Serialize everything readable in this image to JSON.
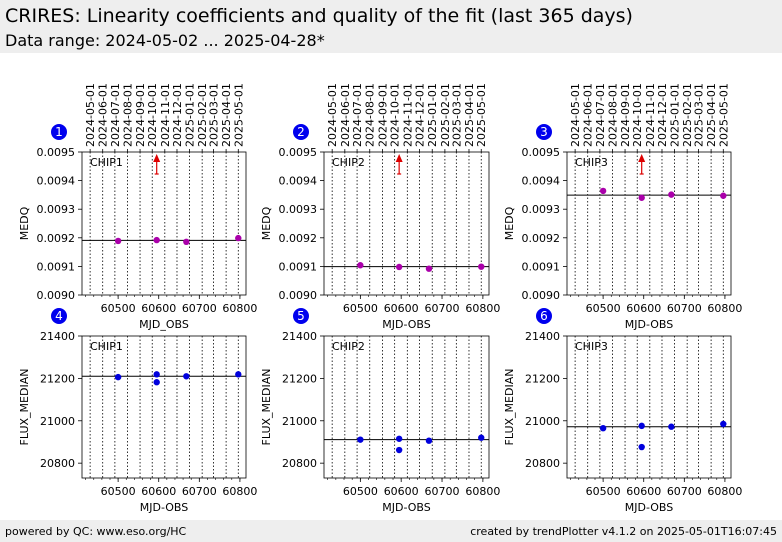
{
  "header": {
    "title": "CRIRES: Linearity coefficients and quality of the fit (last 365 days)",
    "subtitle": "Data range: 2024-05-02 ... 2025-04-28*"
  },
  "footer": {
    "left": "powered by QC: www.eso.org/HC",
    "right": "created by trendPlotter v4.1.2 on 2025-05-01T16:07:45"
  },
  "colors": {
    "medq_point": "#aa00aa",
    "flux_point": "#0000dd",
    "badge": "#0000ee",
    "arrow": "#dd0000",
    "reference_line": "#000000"
  },
  "date_ticks": [
    {
      "label": "2024-05-01",
      "mjd": 60431
    },
    {
      "label": "2024-06-01",
      "mjd": 60462
    },
    {
      "label": "2024-07-01",
      "mjd": 60492
    },
    {
      "label": "2024-08-01",
      "mjd": 60523
    },
    {
      "label": "2024-09-01",
      "mjd": 60554
    },
    {
      "label": "2024-10-01",
      "mjd": 60584
    },
    {
      "label": "2024-11-01",
      "mjd": 60615
    },
    {
      "label": "2024-12-01",
      "mjd": 60645
    },
    {
      "label": "2025-01-01",
      "mjd": 60676
    },
    {
      "label": "2025-02-01",
      "mjd": 60707
    },
    {
      "label": "2025-03-01",
      "mjd": 60735
    },
    {
      "label": "2025-04-01",
      "mjd": 60766
    },
    {
      "label": "2025-05-01",
      "mjd": 60796
    }
  ],
  "chart_data": [
    {
      "id": 1,
      "badge": "1",
      "type": "scatter",
      "chip_label": "CHIP1",
      "xlabel": "MJD_OBS",
      "ylabel": "MEDQ",
      "xlim": [
        60411,
        60815
      ],
      "ylim": [
        0.009,
        0.0095
      ],
      "xticks": [
        60500,
        60600,
        60700,
        60800
      ],
      "xtick_labels": [
        "60500",
        "60600",
        "60700",
        "60800"
      ],
      "yticks": [
        0.009,
        0.0091,
        0.0092,
        0.0093,
        0.0094,
        0.0095
      ],
      "ytick_labels": [
        "0.0090",
        "0.0091",
        "0.0092",
        "0.0093",
        "0.0094",
        "0.0095"
      ],
      "reference": 0.009191,
      "x": [
        60500,
        60595,
        60668,
        60796
      ],
      "y": [
        0.009189,
        0.009192,
        0.009186,
        0.009199
      ],
      "offscale_marker": {
        "x": 60595,
        "direction": "up"
      }
    },
    {
      "id": 2,
      "badge": "2",
      "type": "scatter",
      "chip_label": "CHIP2",
      "xlabel": "MJD-OBS",
      "ylabel": "MEDQ",
      "xlim": [
        60411,
        60815
      ],
      "ylim": [
        0.009,
        0.0095
      ],
      "xticks": [
        60500,
        60600,
        60700,
        60800
      ],
      "xtick_labels": [
        "60500",
        "60600",
        "60700",
        "60800"
      ],
      "yticks": [
        0.009,
        0.0091,
        0.0092,
        0.0093,
        0.0094,
        0.0095
      ],
      "ytick_labels": [
        "0.0090",
        "0.0091",
        "0.0092",
        "0.0093",
        "0.0094",
        "0.0095"
      ],
      "reference": 0.009099,
      "x": [
        60500,
        60595,
        60668,
        60796
      ],
      "y": [
        0.009104,
        0.009098,
        0.009092,
        0.009099
      ],
      "offscale_marker": {
        "x": 60595,
        "direction": "up"
      }
    },
    {
      "id": 3,
      "badge": "3",
      "type": "scatter",
      "chip_label": "CHIP3",
      "xlabel": "MJD-OBS",
      "ylabel": "MEDQ",
      "xlim": [
        60411,
        60815
      ],
      "ylim": [
        0.009,
        0.0095
      ],
      "xticks": [
        60500,
        60600,
        60700,
        60800
      ],
      "xtick_labels": [
        "60500",
        "60600",
        "60700",
        "60800"
      ],
      "yticks": [
        0.009,
        0.0091,
        0.0092,
        0.0093,
        0.0094,
        0.0095
      ],
      "ytick_labels": [
        "0.0090",
        "0.0091",
        "0.0092",
        "0.0093",
        "0.0094",
        "0.0095"
      ],
      "reference": 0.009349,
      "x": [
        60500,
        60595,
        60668,
        60796
      ],
      "y": [
        0.009364,
        0.00934,
        0.009351,
        0.009347
      ],
      "offscale_marker": {
        "x": 60595,
        "direction": "up"
      }
    },
    {
      "id": 4,
      "badge": "4",
      "type": "scatter",
      "chip_label": "CHIP1",
      "xlabel": "MJD-OBS",
      "ylabel": "FLUX_MEDIAN",
      "xlim": [
        60411,
        60815
      ],
      "ylim": [
        20730,
        21400
      ],
      "xticks": [
        60500,
        60600,
        60700,
        60800
      ],
      "xtick_labels": [
        "60500",
        "60600",
        "60700",
        "60800"
      ],
      "yticks": [
        20800,
        21000,
        21200,
        21400
      ],
      "ytick_labels": [
        "20800",
        "21000",
        "21200",
        "21400"
      ],
      "reference": 21210,
      "x": [
        60500,
        60595,
        60595,
        60668,
        60796
      ],
      "y": [
        21206,
        21219,
        21182,
        21210,
        21219
      ]
    },
    {
      "id": 5,
      "badge": "5",
      "type": "scatter",
      "chip_label": "CHIP2",
      "xlabel": "MJD-OBS",
      "ylabel": "FLUX_MEDIAN",
      "xlim": [
        60411,
        60815
      ],
      "ylim": [
        20730,
        21400
      ],
      "xticks": [
        60500,
        60600,
        60700,
        60800
      ],
      "xtick_labels": [
        "60500",
        "60600",
        "60700",
        "60800"
      ],
      "yticks": [
        20800,
        21000,
        21200,
        21400
      ],
      "ytick_labels": [
        "20800",
        "21000",
        "21200",
        "21400"
      ],
      "reference": 20911,
      "x": [
        60500,
        60595,
        60595,
        60668,
        60796
      ],
      "y": [
        20911,
        20915,
        20862,
        20906,
        20920
      ]
    },
    {
      "id": 6,
      "badge": "6",
      "type": "scatter",
      "chip_label": "CHIP3",
      "xlabel": "MJD-OBS",
      "ylabel": "FLUX_MEDIAN",
      "xlim": [
        60411,
        60815
      ],
      "ylim": [
        20730,
        21400
      ],
      "xticks": [
        60500,
        60600,
        60700,
        60800
      ],
      "xtick_labels": [
        "60500",
        "60600",
        "60700",
        "60800"
      ],
      "yticks": [
        20800,
        21000,
        21200,
        21400
      ],
      "ytick_labels": [
        "20800",
        "21000",
        "21200",
        "21400"
      ],
      "reference": 20972,
      "x": [
        60500,
        60595,
        60595,
        60668,
        60796
      ],
      "y": [
        20965,
        20976,
        20876,
        20972,
        20985
      ]
    }
  ]
}
